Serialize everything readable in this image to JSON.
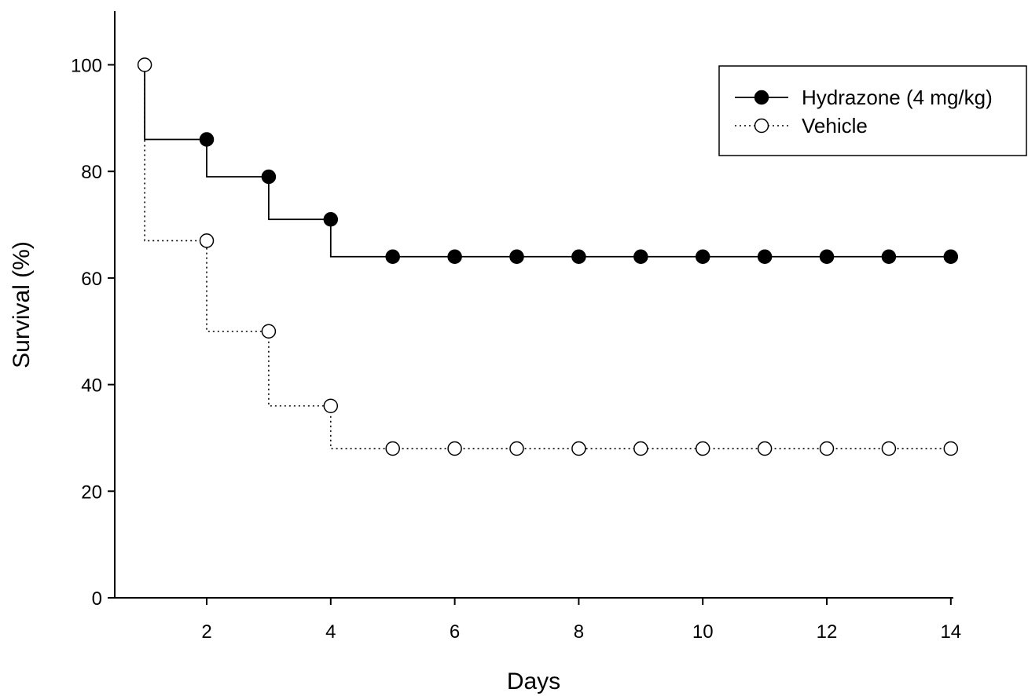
{
  "chart_data": {
    "type": "line",
    "step": true,
    "xlabel": "Days",
    "ylabel": "Survival (%)",
    "xlim": [
      0.5,
      14
    ],
    "ylim": [
      0,
      110
    ],
    "xticks": [
      2,
      4,
      6,
      8,
      10,
      12,
      14
    ],
    "yticks": [
      0,
      20,
      40,
      60,
      80,
      100
    ],
    "grid": false,
    "legend_position": "top-right",
    "series": [
      {
        "name": "Hydrazone (4 mg/kg)",
        "marker": "filled-circle",
        "line_style": "solid",
        "x": [
          2,
          3,
          4,
          5,
          6,
          7,
          8,
          9,
          10,
          11,
          12,
          13,
          14
        ],
        "y": [
          86,
          79,
          71,
          64,
          64,
          64,
          64,
          64,
          64,
          64,
          64,
          64,
          64
        ]
      },
      {
        "name": "Vehicle",
        "marker": "open-circle",
        "line_style": "dotted",
        "x": [
          1,
          2,
          3,
          4,
          5,
          6,
          7,
          8,
          9,
          10,
          11,
          12,
          13,
          14
        ],
        "y": [
          100,
          67,
          50,
          36,
          28,
          28,
          28,
          28,
          28,
          28,
          28,
          28,
          28,
          28
        ]
      }
    ]
  }
}
